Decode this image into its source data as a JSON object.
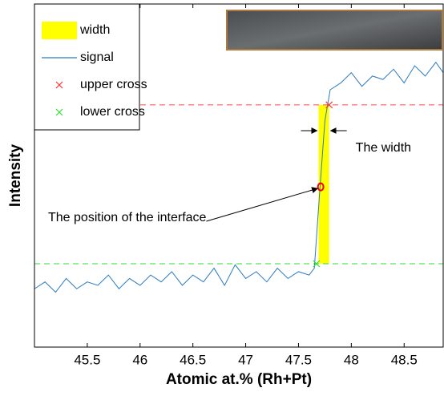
{
  "chart_data": {
    "type": "line",
    "xlabel": "Atomic at.% (Rh+Pt)",
    "ylabel": "Intensity",
    "xlim": [
      45,
      48.87
    ],
    "ylim": [
      0,
      1
    ],
    "xticks": [
      45.5,
      46,
      46.5,
      47,
      47.5,
      48,
      48.5
    ],
    "x": [
      45.0,
      45.1,
      45.2,
      45.3,
      45.4,
      45.5,
      45.6,
      45.7,
      45.8,
      45.9,
      46.0,
      46.1,
      46.2,
      46.3,
      46.4,
      46.5,
      46.6,
      46.7,
      46.8,
      46.9,
      47.0,
      47.1,
      47.2,
      47.3,
      47.4,
      47.5,
      47.6,
      47.65,
      47.7,
      47.75,
      47.8,
      47.9,
      48.0,
      48.1,
      48.2,
      48.3,
      48.4,
      48.5,
      48.6,
      48.7,
      48.8,
      48.87
    ],
    "series": [
      {
        "name": "signal",
        "color": "#2c7bbf",
        "values": [
          0.17,
          0.19,
          0.16,
          0.2,
          0.17,
          0.19,
          0.18,
          0.21,
          0.17,
          0.2,
          0.18,
          0.21,
          0.19,
          0.22,
          0.18,
          0.21,
          0.19,
          0.23,
          0.18,
          0.24,
          0.2,
          0.22,
          0.19,
          0.23,
          0.2,
          0.22,
          0.21,
          0.23,
          0.45,
          0.66,
          0.75,
          0.77,
          0.8,
          0.76,
          0.79,
          0.78,
          0.81,
          0.77,
          0.82,
          0.79,
          0.83,
          0.8
        ]
      }
    ],
    "width": {
      "name": "width",
      "color": "#ffff00",
      "x": [
        47.69,
        47.79
      ]
    },
    "upper_cross": {
      "name": "upper cross",
      "color": "#ff3333",
      "x": 47.79,
      "y": 0.706
    },
    "lower_cross": {
      "name": "lower cross",
      "color": "#33dd33",
      "x": 47.67,
      "y": 0.243
    },
    "interface": {
      "x": 47.71,
      "y": 0.467,
      "color": "#ee0000"
    },
    "annotations": [
      {
        "text": "The width"
      },
      {
        "text": "The position of the interface"
      }
    ],
    "legend": "upper left"
  }
}
